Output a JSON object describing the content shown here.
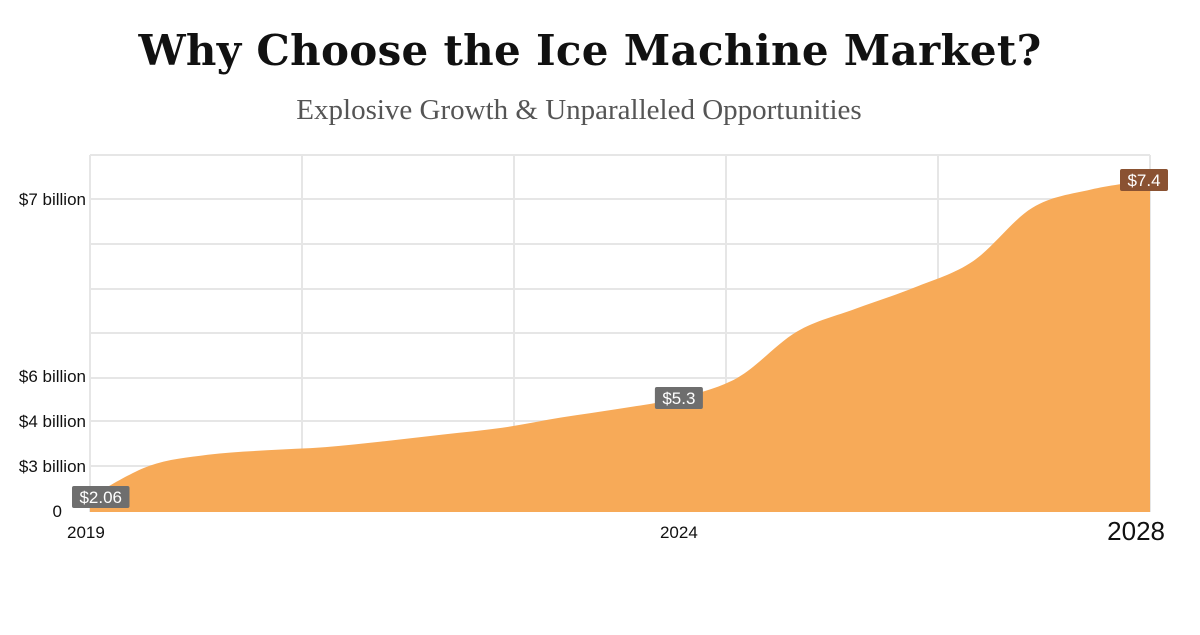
{
  "title": "Why Choose the Ice Machine Market?",
  "subtitle": "Explosive Growth & Unparalleled Opportunities",
  "colors": {
    "area": "#f7aa58",
    "grid": "#e6e6e6",
    "label_bg_start": "#6e6e6e",
    "label_bg_mid": "#6e6e6e",
    "label_bg_end": "#8a5232"
  },
  "chart_data": {
    "type": "area",
    "x": [
      2019,
      2019.5,
      2020,
      2020.5,
      2021,
      2021.5,
      2022,
      2022.5,
      2023,
      2023.5,
      2024,
      2024.5,
      2025,
      2025.5,
      2026,
      2026.5,
      2027,
      2027.5,
      2028
    ],
    "values": [
      2.06,
      3.0,
      3.25,
      3.35,
      3.42,
      3.55,
      3.7,
      3.85,
      4.2,
      4.7,
      5.3,
      5.95,
      6.25,
      6.38,
      6.5,
      6.65,
      6.95,
      7.2,
      7.4
    ],
    "y_tick_labels": [
      {
        "value": 0,
        "label": "0"
      },
      {
        "value": 3,
        "label": "$3 billion"
      },
      {
        "value": 4,
        "label": "$4 billion"
      },
      {
        "value": 6,
        "label": "$6 billion"
      },
      {
        "value": 7,
        "label": "$7 billion"
      }
    ],
    "x_tick_labels": [
      {
        "value": 2019,
        "label": "2019"
      },
      {
        "value": 2024,
        "label": "2024"
      },
      {
        "value": 2028,
        "label": "2028"
      }
    ],
    "data_labels": [
      {
        "x": 2019,
        "label": "$2.06"
      },
      {
        "x": 2024,
        "label": "$5.3"
      },
      {
        "x": 2028,
        "label": "$7.4"
      }
    ],
    "grid": true
  }
}
